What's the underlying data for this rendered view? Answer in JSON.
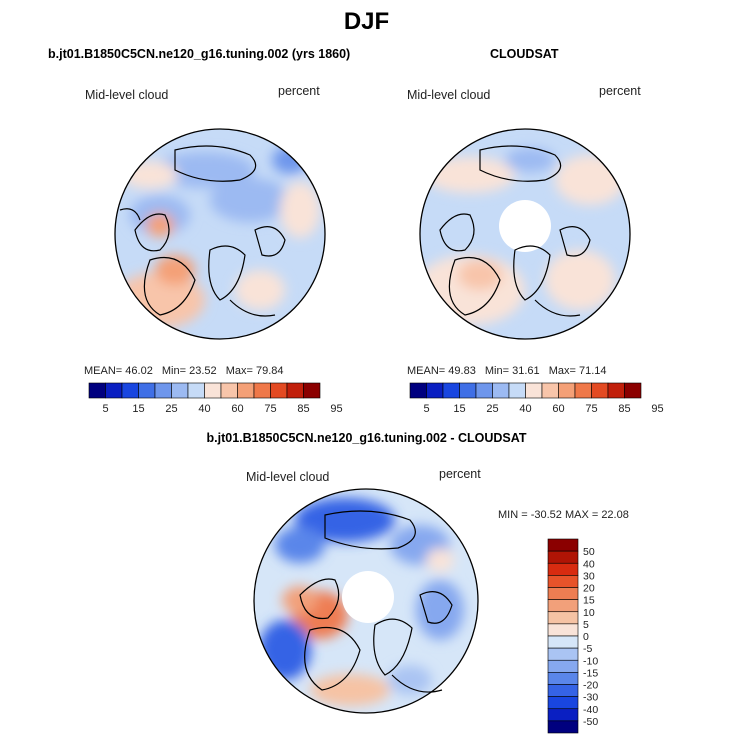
{
  "figure_title": "DJF",
  "colors": {
    "model_scale": [
      "#00007f",
      "#0a1fc2",
      "#1946e0",
      "#3f6fe6",
      "#6e96ec",
      "#9cbaf2",
      "#c6dbf7",
      "#f9e3d8",
      "#f8c5aa",
      "#f4a077",
      "#ef7849",
      "#e34a22",
      "#c11f0b",
      "#8b0000"
    ],
    "diff_scale": [
      "#00007f",
      "#0a1fc2",
      "#1946e0",
      "#3563e5",
      "#5a86ea",
      "#86a8ef",
      "#aac4f3",
      "#d6e6f8",
      "#f9e3d8",
      "#f6c3a4",
      "#f2a07a",
      "#ee7d52",
      "#e7532a",
      "#d82b10",
      "#b01405",
      "#8b0000"
    ],
    "coast": "#000000"
  },
  "panels": [
    {
      "id": "model",
      "title": "b.jt01.B1850C5CN.ne120_g16.tuning.002 (yrs 1860)",
      "left_label": "Mid-level cloud",
      "right_label": "percent",
      "stats": {
        "mean_label": "MEAN=",
        "mean": "46.02",
        "min_label": "Min=",
        "min": "23.52",
        "max_label": "Max=",
        "max": "79.84"
      },
      "colorbar_ticks": [
        "5",
        "15",
        "25",
        "40",
        "60",
        "75",
        "85",
        "95"
      ]
    },
    {
      "id": "obs",
      "title": "CLOUDSAT",
      "left_label": "Mid-level cloud",
      "right_label": "percent",
      "stats": {
        "mean_label": "MEAN=",
        "mean": "49.83",
        "min_label": "Min=",
        "min": "31.61",
        "max_label": "Max=",
        "max": "71.14"
      },
      "colorbar_ticks": [
        "5",
        "15",
        "25",
        "40",
        "60",
        "75",
        "85",
        "95"
      ]
    },
    {
      "id": "diff",
      "title": "b.jt01.B1850C5CN.ne120_g16.tuning.002 - CLOUDSAT",
      "left_label": "Mid-level cloud",
      "right_label": "percent",
      "minmax_text": "MIN = -30.52 MAX =  22.08",
      "colorbar_ticks": [
        "50",
        "40",
        "30",
        "20",
        "15",
        "10",
        "5",
        "0",
        "-5",
        "-10",
        "-15",
        "-20",
        "-30",
        "-40",
        "-50"
      ]
    }
  ]
}
